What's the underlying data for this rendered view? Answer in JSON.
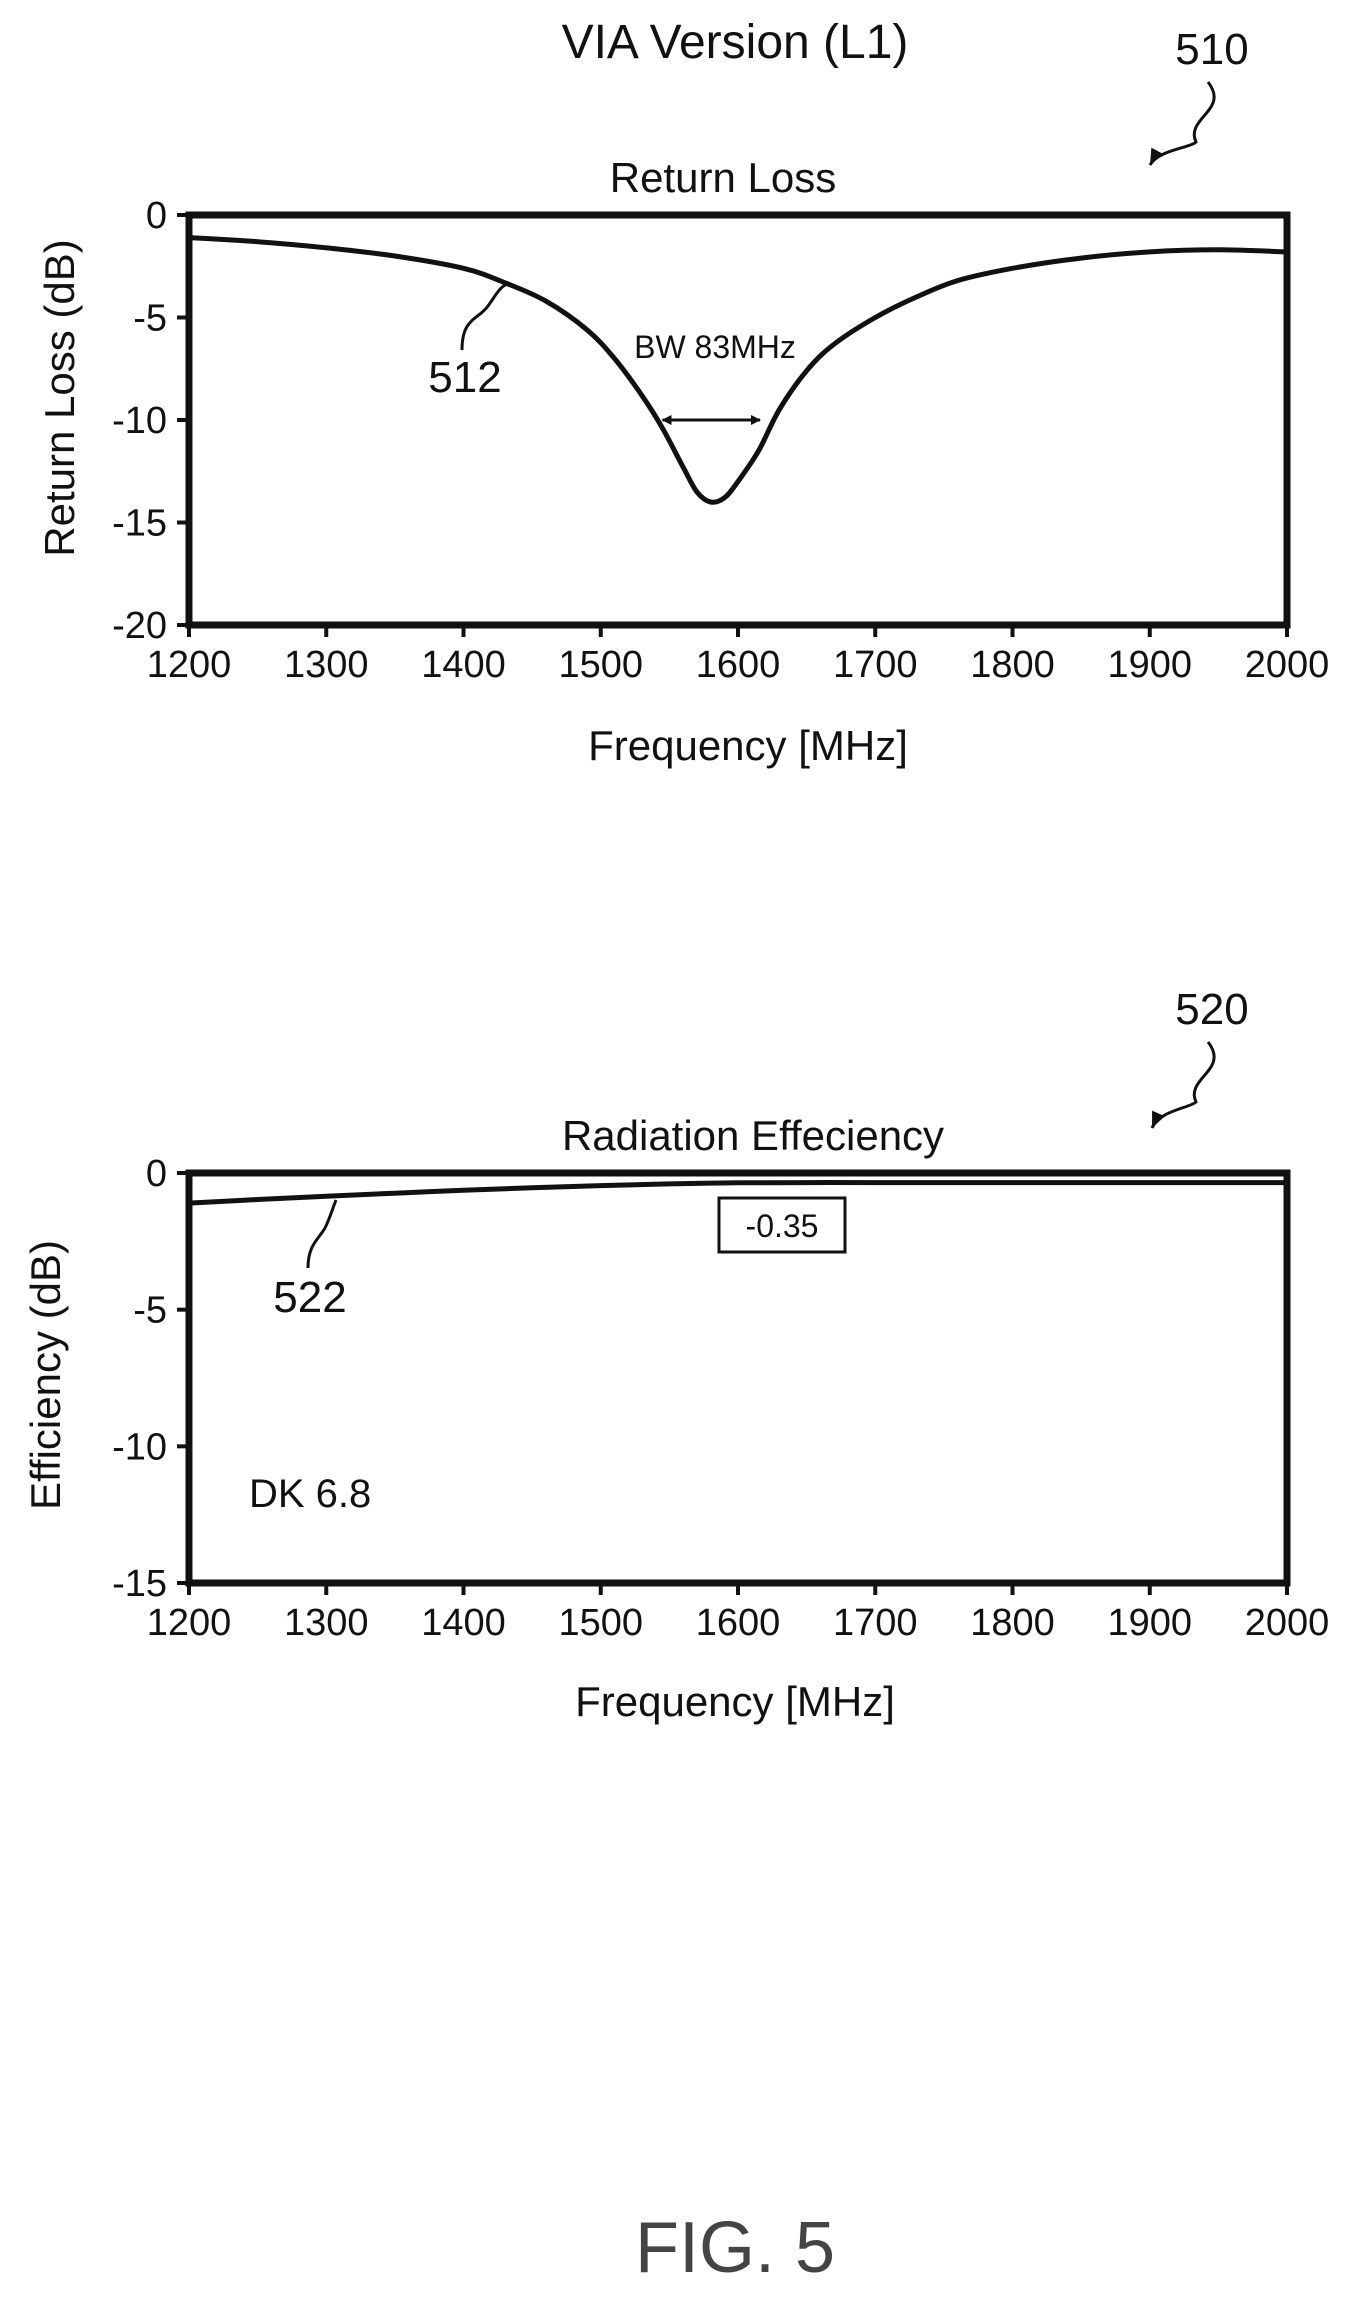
{
  "page": {
    "title": "VIA Version (L1)",
    "figure_label": "FIG. 5"
  },
  "chart_data": [
    {
      "type": "line",
      "ref": "510",
      "title": "Return Loss",
      "xlabel": "Frequency [MHz]",
      "ylabel": "Return Loss (dB)",
      "xlim": [
        1200,
        2000
      ],
      "ylim": [
        -20,
        0
      ],
      "xticks": [
        "1200",
        "1300",
        "1400",
        "1500",
        "1600",
        "1700",
        "1800",
        "1900",
        "2000"
      ],
      "yticks": [
        "0",
        "-5",
        "-10",
        "-15",
        "-20"
      ],
      "grid": false,
      "series": [
        {
          "ref": "512",
          "x": [
            1200,
            1250,
            1300,
            1350,
            1400,
            1430,
            1460,
            1490,
            1510,
            1530,
            1545,
            1560,
            1570,
            1580,
            1590,
            1600,
            1615,
            1630,
            1650,
            1670,
            1700,
            1730,
            1760,
            1800,
            1850,
            1900,
            1950,
            2000
          ],
          "y": [
            -1.1,
            -1.3,
            -1.6,
            -2.0,
            -2.6,
            -3.3,
            -4.2,
            -5.6,
            -7.0,
            -8.8,
            -10.4,
            -12.3,
            -13.5,
            -14.0,
            -13.8,
            -13.0,
            -11.5,
            -9.5,
            -7.6,
            -6.3,
            -5.0,
            -4.0,
            -3.2,
            -2.6,
            -2.1,
            -1.8,
            -1.7,
            -1.8
          ]
        }
      ],
      "annotations": {
        "bandwidth": {
          "text": "BW 83MHz",
          "x_start": 1545,
          "x_end": 1616,
          "y": -10
        }
      }
    },
    {
      "type": "line",
      "ref": "520",
      "title": "Radiation Effeciency",
      "xlabel": "Frequency [MHz]",
      "ylabel": "Efficiency (dB)",
      "xlim": [
        1200,
        2000
      ],
      "ylim": [
        -15,
        0
      ],
      "xticks": [
        "1200",
        "1300",
        "1400",
        "1500",
        "1600",
        "1700",
        "1800",
        "1900",
        "2000"
      ],
      "yticks": [
        "0",
        "-5",
        "-10",
        "-15"
      ],
      "grid": false,
      "series": [
        {
          "ref": "522",
          "x": [
            1200,
            1250,
            1300,
            1350,
            1400,
            1450,
            1500,
            1550,
            1600,
            1650,
            1700,
            1800,
            1900,
            2000
          ],
          "y": [
            -1.1,
            -0.97,
            -0.85,
            -0.74,
            -0.63,
            -0.54,
            -0.46,
            -0.4,
            -0.36,
            -0.35,
            -0.35,
            -0.35,
            -0.35,
            -0.35
          ]
        }
      ],
      "annotations": {
        "peak_value": {
          "text": "-0.35",
          "x": 1620
        },
        "dk": {
          "text": "DK 6.8"
        }
      }
    }
  ]
}
